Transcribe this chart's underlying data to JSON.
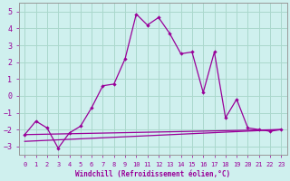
{
  "xlabel": "Windchill (Refroidissement éolien,°C)",
  "background_color": "#cff0ee",
  "grid_color": "#aad8cc",
  "line_color": "#990099",
  "xlim": [
    -0.5,
    23.5
  ],
  "ylim": [
    -3.5,
    5.5
  ],
  "xticks": [
    0,
    1,
    2,
    3,
    4,
    5,
    6,
    7,
    8,
    9,
    10,
    11,
    12,
    13,
    14,
    15,
    16,
    17,
    18,
    19,
    20,
    21,
    22,
    23
  ],
  "yticks": [
    -3,
    -2,
    -1,
    0,
    1,
    2,
    3,
    4,
    5
  ],
  "line1_x": [
    0,
    23
  ],
  "line1_y": [
    -2.3,
    -2.0
  ],
  "line2_x": [
    0,
    23
  ],
  "line2_y": [
    -2.7,
    -2.0
  ],
  "line3_x": [
    0,
    1,
    2,
    3,
    4,
    5,
    6,
    7,
    8,
    9,
    10,
    11,
    12,
    13,
    14,
    15,
    16,
    17,
    18,
    19,
    20,
    21,
    22,
    23
  ],
  "line3_y": [
    -2.3,
    -1.5,
    -1.9,
    -3.1,
    -2.2,
    -1.8,
    -0.7,
    0.6,
    0.7,
    2.2,
    4.85,
    4.2,
    4.65,
    3.7,
    2.5,
    2.6,
    0.2,
    2.6,
    -1.3,
    -0.2,
    -1.9,
    -2.0,
    -2.1,
    -2.0
  ]
}
